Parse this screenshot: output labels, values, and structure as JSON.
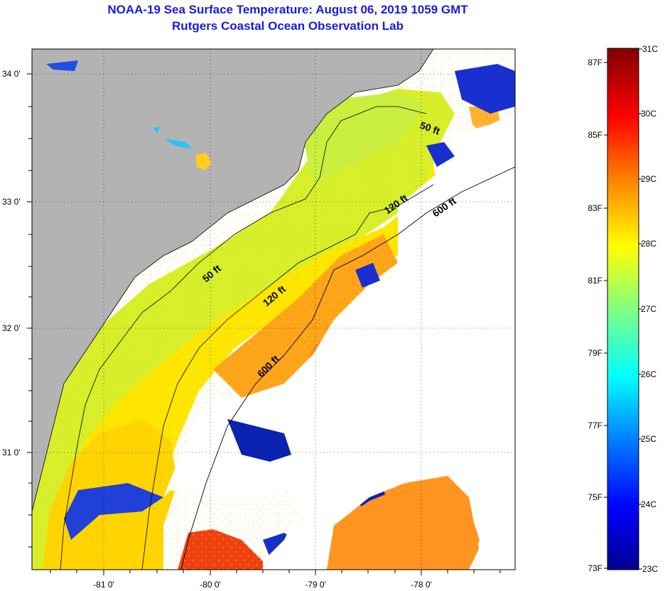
{
  "header": {
    "title": "NOAA-19 Sea Surface Temperature:  August 06, 2019 1059 GMT",
    "subtitle": "Rutgers Coastal Ocean Observation Lab"
  },
  "map": {
    "lat_ticks": [
      "34 0'",
      "33 0'",
      "32 0'",
      "31 0'"
    ],
    "lon_ticks": [
      "-81 0'",
      "-80 0'",
      "-79 0'",
      "-78 0'"
    ],
    "contour_labels": [
      "50 ft",
      "50 ft",
      "120 ft",
      "120 ft",
      "600 ft",
      "600 ft"
    ],
    "colors": {
      "land": "#b3b3b3",
      "cloud": "#ffffff",
      "frame": "#000000"
    }
  },
  "colorbar": {
    "fahrenheit_labels": [
      "87F",
      "85F",
      "83F",
      "81F",
      "79F",
      "77F",
      "75F",
      "73F"
    ],
    "celsius_labels": [
      "31C",
      "30C",
      "29C",
      "28C",
      "27C",
      "26C",
      "25C",
      "24C",
      "23C"
    ],
    "range_c": [
      23,
      31
    ],
    "range_f": [
      73,
      87
    ]
  }
}
